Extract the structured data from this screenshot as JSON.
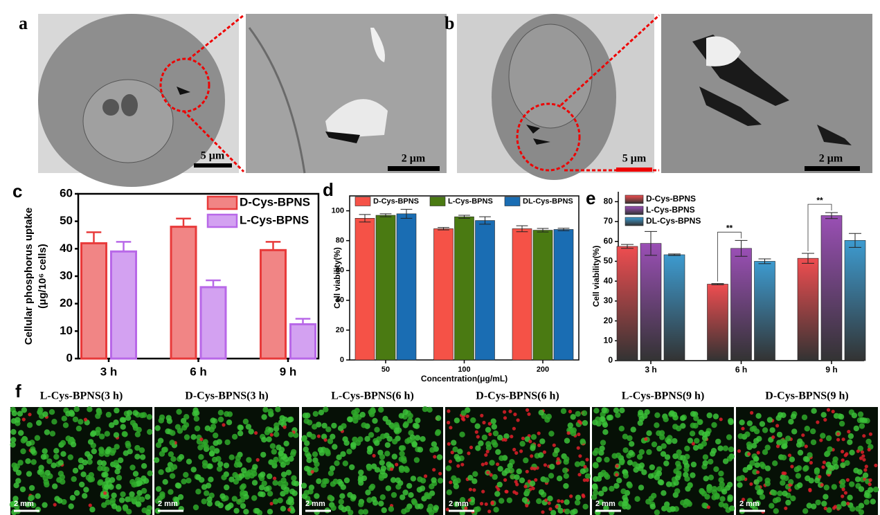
{
  "panel_labels": [
    "a",
    "b",
    "c",
    "d",
    "e",
    "f"
  ],
  "micrographs": [
    {
      "scale": "5 μm"
    },
    {
      "scale": "2 μm"
    },
    {
      "scale": "5 μm"
    },
    {
      "scale": "2 μm"
    }
  ],
  "fluorescence": [
    {
      "title": "L-Cys-BPNS(3 h)",
      "scale": "2 mm"
    },
    {
      "title": "D-Cys-BPNS(3 h)",
      "scale": "2 mm"
    },
    {
      "title": "L-Cys-BPNS(6 h)",
      "scale": "2 mm"
    },
    {
      "title": "D-Cys-BPNS(6 h)",
      "scale": "2 mm"
    },
    {
      "title": "L-Cys-BPNS(9 h)",
      "scale": "2 mm"
    },
    {
      "title": "D-Cys-BPNS(9 h)",
      "scale": "2 mm"
    }
  ],
  "chart_data": [
    {
      "type": "bar",
      "y_label": [
        "Cellular phosphorus uptake",
        "(μg/10⁶ cells)"
      ],
      "categories": [
        "3 h",
        "6 h",
        "9 h"
      ],
      "series": [
        {
          "name": "D-Cys-BPNS",
          "color": "#e83a3a",
          "values": [
            42,
            48,
            39.5
          ],
          "errors": [
            4,
            3,
            3
          ]
        },
        {
          "name": "L-Cys-BPNS",
          "color": "#b868e8",
          "values": [
            39,
            26,
            12.5
          ],
          "errors": [
            3.5,
            2.5,
            2
          ]
        }
      ],
      "ylim": [
        0,
        60
      ],
      "yticks": [
        0,
        10,
        20,
        30,
        40,
        50,
        60
      ],
      "legend": "upper right"
    },
    {
      "type": "bar",
      "x_label": "Concentration(μg/mL)",
      "y_label": [
        "Cell viability(%)"
      ],
      "categories": [
        "50",
        "100",
        "200"
      ],
      "series": [
        {
          "name": "D-Cys-BPNS",
          "color": "#f55247",
          "values": [
            95,
            88,
            88
          ],
          "errors": [
            2.5,
            0.8,
            2
          ]
        },
        {
          "name": "L-Cys-BPNS",
          "color": "#4a7a12",
          "values": [
            97,
            96,
            87
          ],
          "errors": [
            1,
            1,
            1.2
          ]
        },
        {
          "name": "DL-Cys-BPNS",
          "color": "#1a6db3",
          "values": [
            98,
            93.5,
            87.5
          ],
          "errors": [
            3,
            2.5,
            0.8
          ]
        }
      ],
      "ylim": [
        0,
        110
      ],
      "yticks": [
        0,
        20,
        40,
        60,
        80,
        100
      ],
      "legend": "upper center"
    },
    {
      "type": "bar",
      "y_label": [
        "Cell viability(%)"
      ],
      "categories": [
        "3 h",
        "6 h",
        "9 h"
      ],
      "series": [
        {
          "name": "D-Cys-BPNS",
          "color": "#ef4d50",
          "values": [
            57.5,
            38.5,
            51.5
          ],
          "errors": [
            1,
            0.3,
            2.5
          ]
        },
        {
          "name": "L-Cys-BPNS",
          "color": "#9a4fb5",
          "values": [
            59,
            56.5,
            73
          ],
          "errors": [
            6,
            4,
            1.5
          ]
        },
        {
          "name": "DL-Cys-BPNS",
          "color": "#3d9bd0",
          "values": [
            53.3,
            50,
            60.5
          ],
          "errors": [
            0.4,
            1.2,
            3.5
          ]
        }
      ],
      "ylim": [
        0,
        85
      ],
      "yticks": [
        0,
        10,
        20,
        30,
        40,
        50,
        60,
        70,
        80
      ],
      "annotations": [
        "**",
        "**"
      ],
      "legend": "upper left"
    }
  ]
}
